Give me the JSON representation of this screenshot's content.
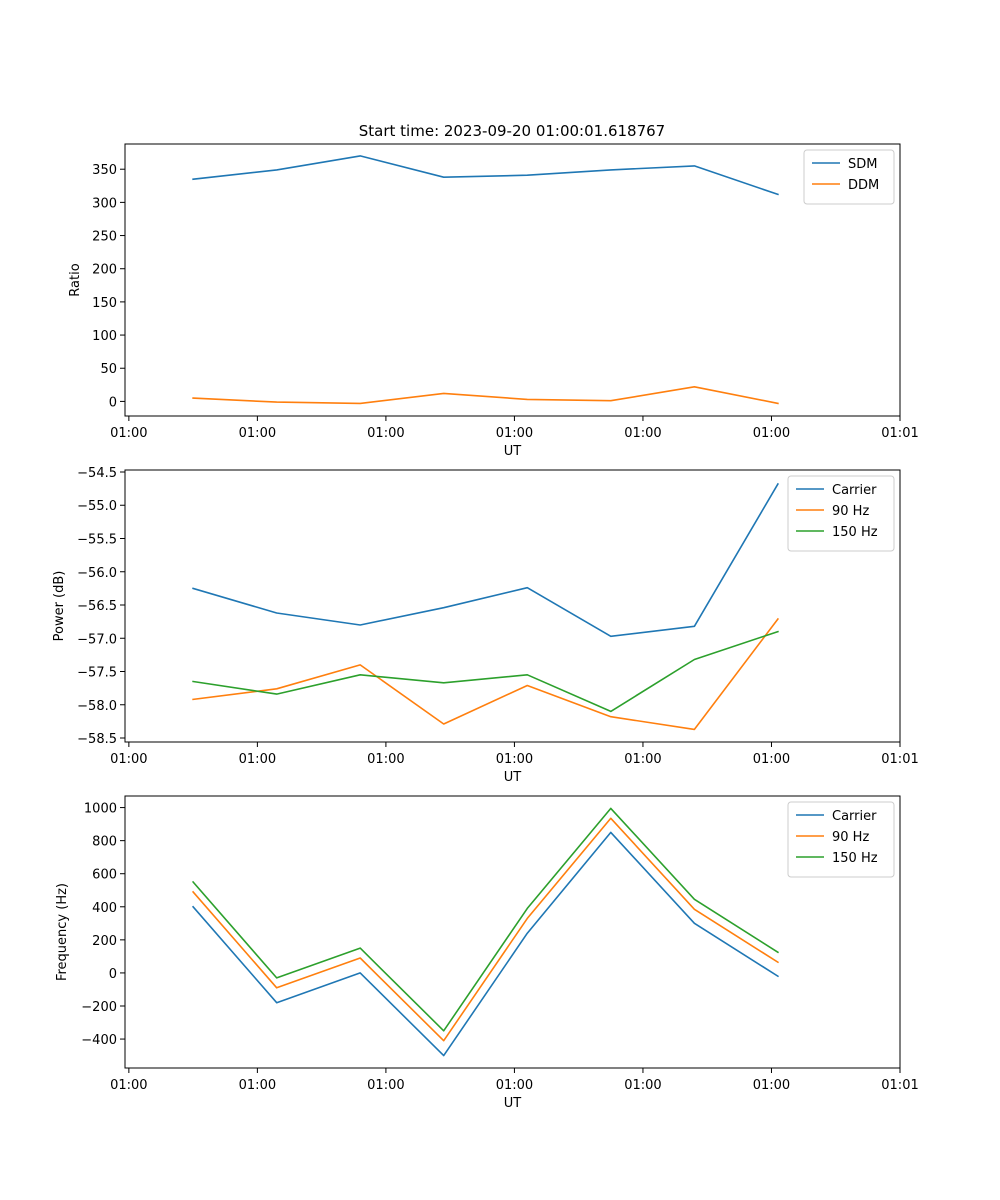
{
  "figure_title": "Start time: 2023-09-20 01:00:01.618767",
  "chart_data": [
    {
      "type": "line",
      "title": "Start time: 2023-09-20 01:00:01.618767",
      "xlabel": "UT",
      "ylabel": "Ratio",
      "x": [
        0.5,
        1.15,
        1.8,
        2.45,
        3.1,
        3.75,
        4.4,
        5.05
      ],
      "xlim": [
        -0.03,
        6.0
      ],
      "xticks": [
        0,
        1,
        2,
        3,
        4,
        5,
        6
      ],
      "xtick_labels": [
        "01:00",
        "01:00",
        "01:00",
        "01:00",
        "01:00",
        "01:00",
        "01:01"
      ],
      "ylim": [
        -22,
        388
      ],
      "yticks": [
        0,
        50,
        100,
        150,
        200,
        250,
        300,
        350
      ],
      "ytick_labels": [
        "0",
        "50",
        "100",
        "150",
        "200",
        "250",
        "300",
        "350"
      ],
      "legend_position": "top-right",
      "series": [
        {
          "name": "SDM",
          "color": "#1f77b4",
          "values": [
            335,
            349,
            370,
            338,
            341,
            349,
            355,
            312
          ]
        },
        {
          "name": "DDM",
          "color": "#ff7f0e",
          "values": [
            5,
            -1,
            -3,
            12,
            3,
            1,
            22,
            -3
          ]
        }
      ]
    },
    {
      "type": "line",
      "title": "",
      "xlabel": "UT",
      "ylabel": "Power (dB)",
      "x": [
        0.5,
        1.15,
        1.8,
        2.45,
        3.1,
        3.75,
        4.4,
        5.05
      ],
      "xlim": [
        -0.03,
        6.0
      ],
      "xticks": [
        0,
        1,
        2,
        3,
        4,
        5,
        6
      ],
      "xtick_labels": [
        "01:00",
        "01:00",
        "01:00",
        "01:00",
        "01:00",
        "01:00",
        "01:01"
      ],
      "ylim": [
        -58.56,
        -54.47
      ],
      "yticks": [
        -58.5,
        -58.0,
        -57.5,
        -57.0,
        -56.5,
        -56.0,
        -55.5,
        -55.0,
        -54.5
      ],
      "ytick_labels": [
        "−58.5",
        "−58.0",
        "−57.5",
        "−57.0",
        "−56.5",
        "−56.0",
        "−55.5",
        "−55.0",
        "−54.5"
      ],
      "legend_position": "top-right",
      "series": [
        {
          "name": "Carrier",
          "color": "#1f77b4",
          "values": [
            -56.25,
            -56.62,
            -56.8,
            -56.54,
            -56.24,
            -56.97,
            -56.82,
            -54.68
          ]
        },
        {
          "name": "90 Hz",
          "color": "#ff7f0e",
          "values": [
            -57.92,
            -57.76,
            -57.4,
            -58.29,
            -57.71,
            -58.18,
            -58.37,
            -56.71
          ]
        },
        {
          "name": "150 Hz",
          "color": "#2ca02c",
          "values": [
            -57.65,
            -57.84,
            -57.55,
            -57.67,
            -57.55,
            -58.1,
            -57.32,
            -56.9
          ]
        }
      ]
    },
    {
      "type": "line",
      "title": "",
      "xlabel": "UT",
      "ylabel": "Frequency (Hz)",
      "x": [
        0.5,
        1.15,
        1.8,
        2.45,
        3.1,
        3.75,
        4.4,
        5.05
      ],
      "xlim": [
        -0.03,
        6.0
      ],
      "xticks": [
        0,
        1,
        2,
        3,
        4,
        5,
        6
      ],
      "xtick_labels": [
        "01:00",
        "01:00",
        "01:00",
        "01:00",
        "01:00",
        "01:00",
        "01:01"
      ],
      "ylim": [
        -575,
        1070
      ],
      "yticks": [
        -400,
        -200,
        0,
        200,
        400,
        600,
        800,
        1000
      ],
      "ytick_labels": [
        "−400",
        "−200",
        "0",
        "200",
        "400",
        "600",
        "800",
        "1000"
      ],
      "legend_position": "top-right",
      "series": [
        {
          "name": "Carrier",
          "color": "#1f77b4",
          "values": [
            400,
            -180,
            0,
            -500,
            240,
            850,
            300,
            -20
          ]
        },
        {
          "name": "90 Hz",
          "color": "#ff7f0e",
          "values": [
            490,
            -90,
            90,
            -410,
            330,
            935,
            385,
            65
          ]
        },
        {
          "name": "150 Hz",
          "color": "#2ca02c",
          "values": [
            550,
            -30,
            150,
            -350,
            390,
            995,
            445,
            125
          ]
        }
      ]
    }
  ]
}
